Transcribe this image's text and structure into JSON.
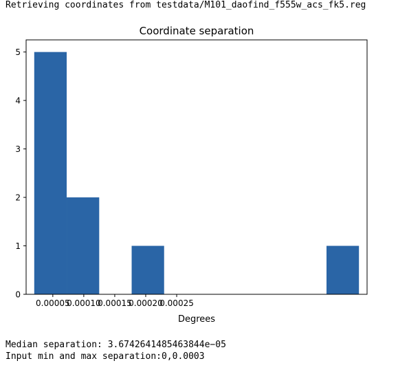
{
  "console": {
    "header": "Retrieving coordinates from testdata/M101_daofind_f555w_acs_fk5.reg",
    "footer_lines": [
      "Median separation: 3.6742641485463844e−05",
      "Input min and max separation:0,0.0003"
    ]
  },
  "chart_data": {
    "type": "bar",
    "title": "Coordinate separation",
    "xlabel": "Degrees",
    "ylabel": "",
    "bar_color": "#2a65a6",
    "bins": [
      {
        "start": 2e-05,
        "end": 7.24e-05,
        "count": 5
      },
      {
        "start": 7.24e-05,
        "end": 0.0001249,
        "count": 2
      },
      {
        "start": 0.0001249,
        "end": 0.0001773,
        "count": 0
      },
      {
        "start": 0.0001773,
        "end": 0.0002297,
        "count": 1
      },
      {
        "start": 0.0002297,
        "end": 0.0002822,
        "count": 0
      },
      {
        "start": 0.0002822,
        "end": 0.0003346,
        "count": 0
      },
      {
        "start": 0.0003346,
        "end": 0.000387,
        "count": 0
      },
      {
        "start": 0.000387,
        "end": 0.0004394,
        "count": 0
      },
      {
        "start": 0.0004394,
        "end": 0.0004919,
        "count": 0
      },
      {
        "start": 0.0004919,
        "end": 0.0005443,
        "count": 1
      }
    ],
    "xlim": [
      6.9e-06,
      0.0005574
    ],
    "ylim": [
      0,
      5.25
    ],
    "xticks": [
      {
        "value": 5e-05,
        "label": "0.00005"
      },
      {
        "value": 0.0001,
        "label": "0.00010"
      },
      {
        "value": 0.00015,
        "label": "0.00015"
      },
      {
        "value": 0.0002,
        "label": "0.00020"
      },
      {
        "value": 0.00025,
        "label": "0.00025"
      }
    ],
    "yticks": [
      {
        "value": 0,
        "label": "0"
      },
      {
        "value": 1,
        "label": "1"
      },
      {
        "value": 2,
        "label": "2"
      },
      {
        "value": 3,
        "label": "3"
      },
      {
        "value": 4,
        "label": "4"
      },
      {
        "value": 5,
        "label": "5"
      }
    ],
    "grid": false,
    "legend": "none"
  }
}
